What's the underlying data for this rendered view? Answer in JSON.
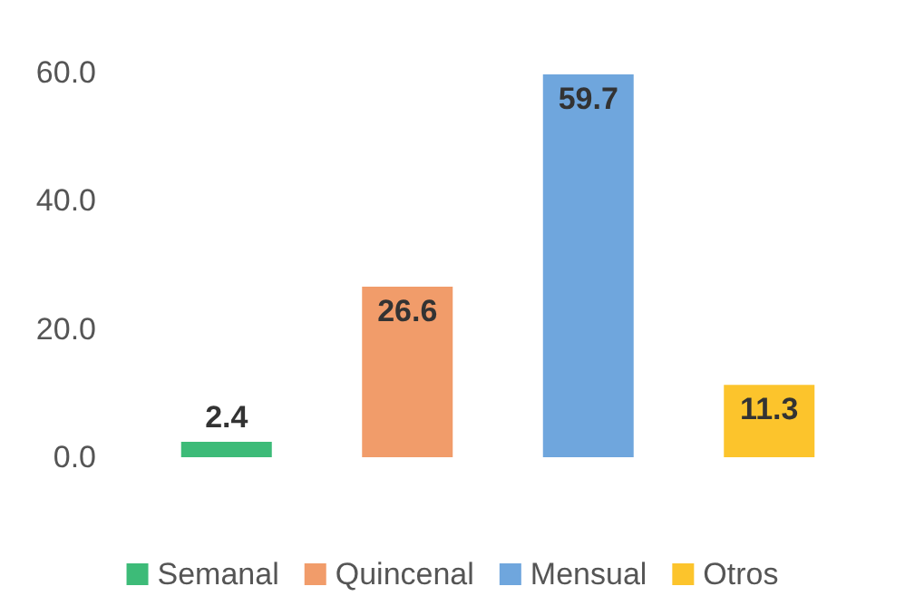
{
  "chart_data": {
    "type": "bar",
    "categories": [
      null,
      null,
      null,
      null
    ],
    "stacked": true,
    "series": [
      {
        "name": "Semanal",
        "color": "#3dbb78",
        "values": [
          2.4,
          null,
          null,
          null
        ]
      },
      {
        "name": "Quincenal",
        "color": "#f19c6a",
        "values": [
          null,
          26.6,
          null,
          null
        ]
      },
      {
        "name": "Mensual",
        "color": "#6fa6dd",
        "values": [
          null,
          null,
          59.7,
          null
        ]
      },
      {
        "name": "Otros",
        "color": "#fcc42c",
        "values": [
          null,
          null,
          null,
          11.3
        ]
      }
    ],
    "ylim": [
      0,
      60
    ],
    "yticks": [
      {
        "value": 0,
        "label": "0.0"
      },
      {
        "value": 20,
        "label": "20.0"
      },
      {
        "value": 40,
        "label": "40.0"
      },
      {
        "value": 60,
        "label": "60.0"
      }
    ],
    "data_labels": true,
    "grid": false,
    "legend": "bottom"
  }
}
